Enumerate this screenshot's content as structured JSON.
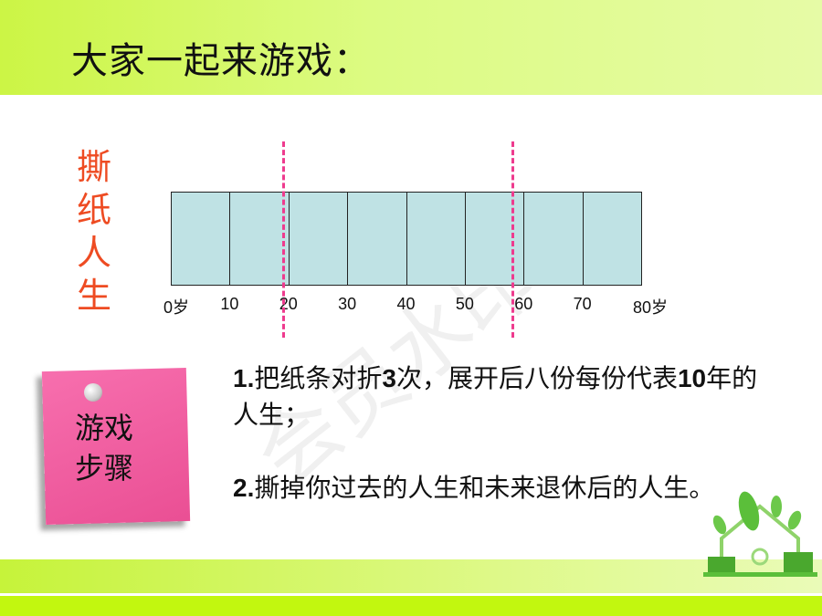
{
  "title": "大家一起来游戏：",
  "side_title": [
    "撕",
    "纸",
    "人",
    "生"
  ],
  "timeline": {
    "labels": [
      "0岁",
      "10",
      "20",
      "30",
      "40",
      "50",
      "60",
      "70",
      "80岁"
    ],
    "segments": 8,
    "cut_marks_at_age": [
      19,
      58
    ],
    "fill": "#bfe2e4",
    "cut_color": "#ee3b8e"
  },
  "note": {
    "line1": "游戏",
    "line2": "步骤",
    "color": "#ef5b9c"
  },
  "steps": [
    {
      "num": "1.",
      "text": "把纸条对折",
      "bold": "3",
      "text2": "次，展开后八份每份代表",
      "bold2": "10",
      "text3": "年的人生；"
    },
    {
      "num": "2.",
      "text": "撕掉你过去的人生和未来退休后的人生。"
    }
  ],
  "watermark": "会员水印"
}
